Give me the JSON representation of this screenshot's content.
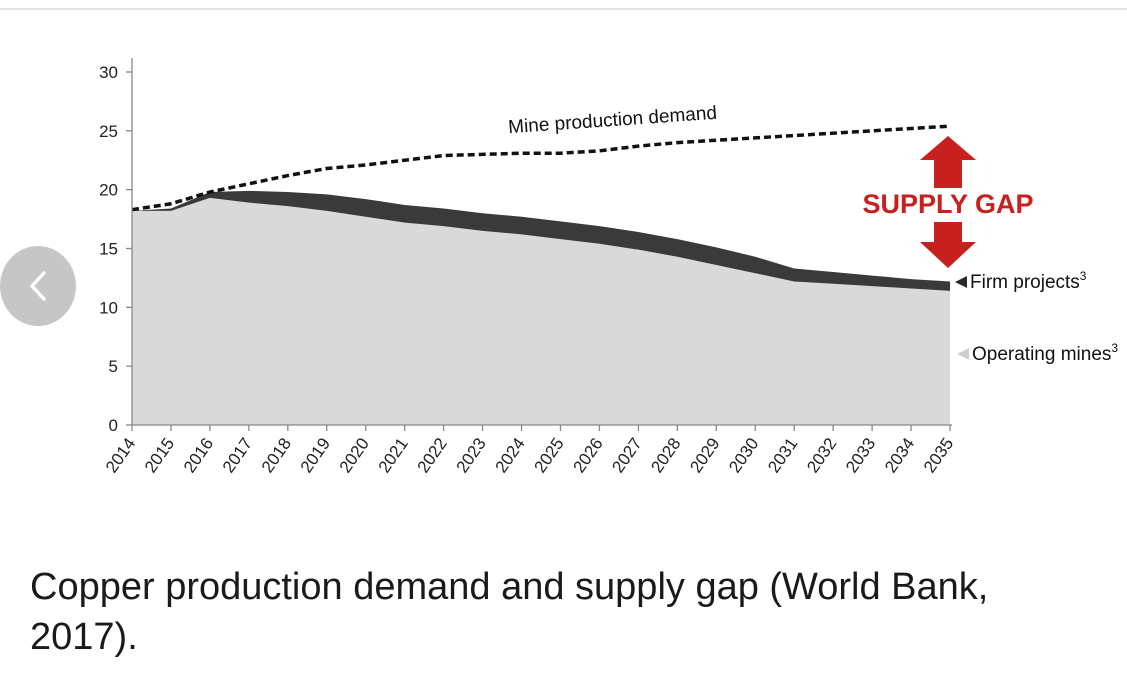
{
  "nav": {
    "back_icon": "chevron-left-icon"
  },
  "caption": "Copper production demand and supply gap (World Bank, 2017).",
  "colors": {
    "operating": "#d9d9d9",
    "firm": "#3a3a3a",
    "demand": "#111111",
    "gap": "#c8201f"
  },
  "chart_data": {
    "type": "area",
    "title": "",
    "xlabel": "",
    "ylabel": "",
    "x": [
      "2014",
      "2015",
      "2016",
      "2017",
      "2018",
      "2019",
      "2020",
      "2021",
      "2022",
      "2023",
      "2024",
      "2025",
      "2026",
      "2027",
      "2028",
      "2029",
      "2030",
      "2031",
      "2032",
      "2033",
      "2034",
      "2035"
    ],
    "ylim": [
      0,
      30
    ],
    "yticks": [
      "0",
      "5",
      "10",
      "15",
      "20",
      "25",
      "30"
    ],
    "series": [
      {
        "name": "Operating mines³",
        "kind": "area",
        "values": [
          18.2,
          18.2,
          19.3,
          18.9,
          18.6,
          18.2,
          17.7,
          17.2,
          16.9,
          16.5,
          16.2,
          15.8,
          15.4,
          14.9,
          14.3,
          13.6,
          12.9,
          12.2,
          12.0,
          11.8,
          11.6,
          11.4
        ]
      },
      {
        "name": "Firm projects³",
        "kind": "area",
        "values": [
          18.2,
          18.4,
          19.8,
          19.9,
          19.8,
          19.6,
          19.2,
          18.7,
          18.4,
          18.0,
          17.7,
          17.3,
          16.9,
          16.4,
          15.8,
          15.1,
          14.3,
          13.3,
          13.0,
          12.7,
          12.4,
          12.2
        ]
      },
      {
        "name": "Mine production demand",
        "kind": "line",
        "values": [
          18.3,
          18.8,
          19.8,
          20.5,
          21.2,
          21.8,
          22.1,
          22.5,
          22.9,
          23.0,
          23.1,
          23.1,
          23.3,
          23.7,
          24.0,
          24.2,
          24.4,
          24.6,
          24.8,
          25.0,
          25.2,
          25.4
        ]
      }
    ],
    "annotations": {
      "demand_label": "Mine production demand",
      "supply_gap": "SUPPLY GAP",
      "firm_label": "Firm projects",
      "firm_sup": "3",
      "operating_label": "Operating mines",
      "operating_sup": "3"
    },
    "grid": false
  }
}
